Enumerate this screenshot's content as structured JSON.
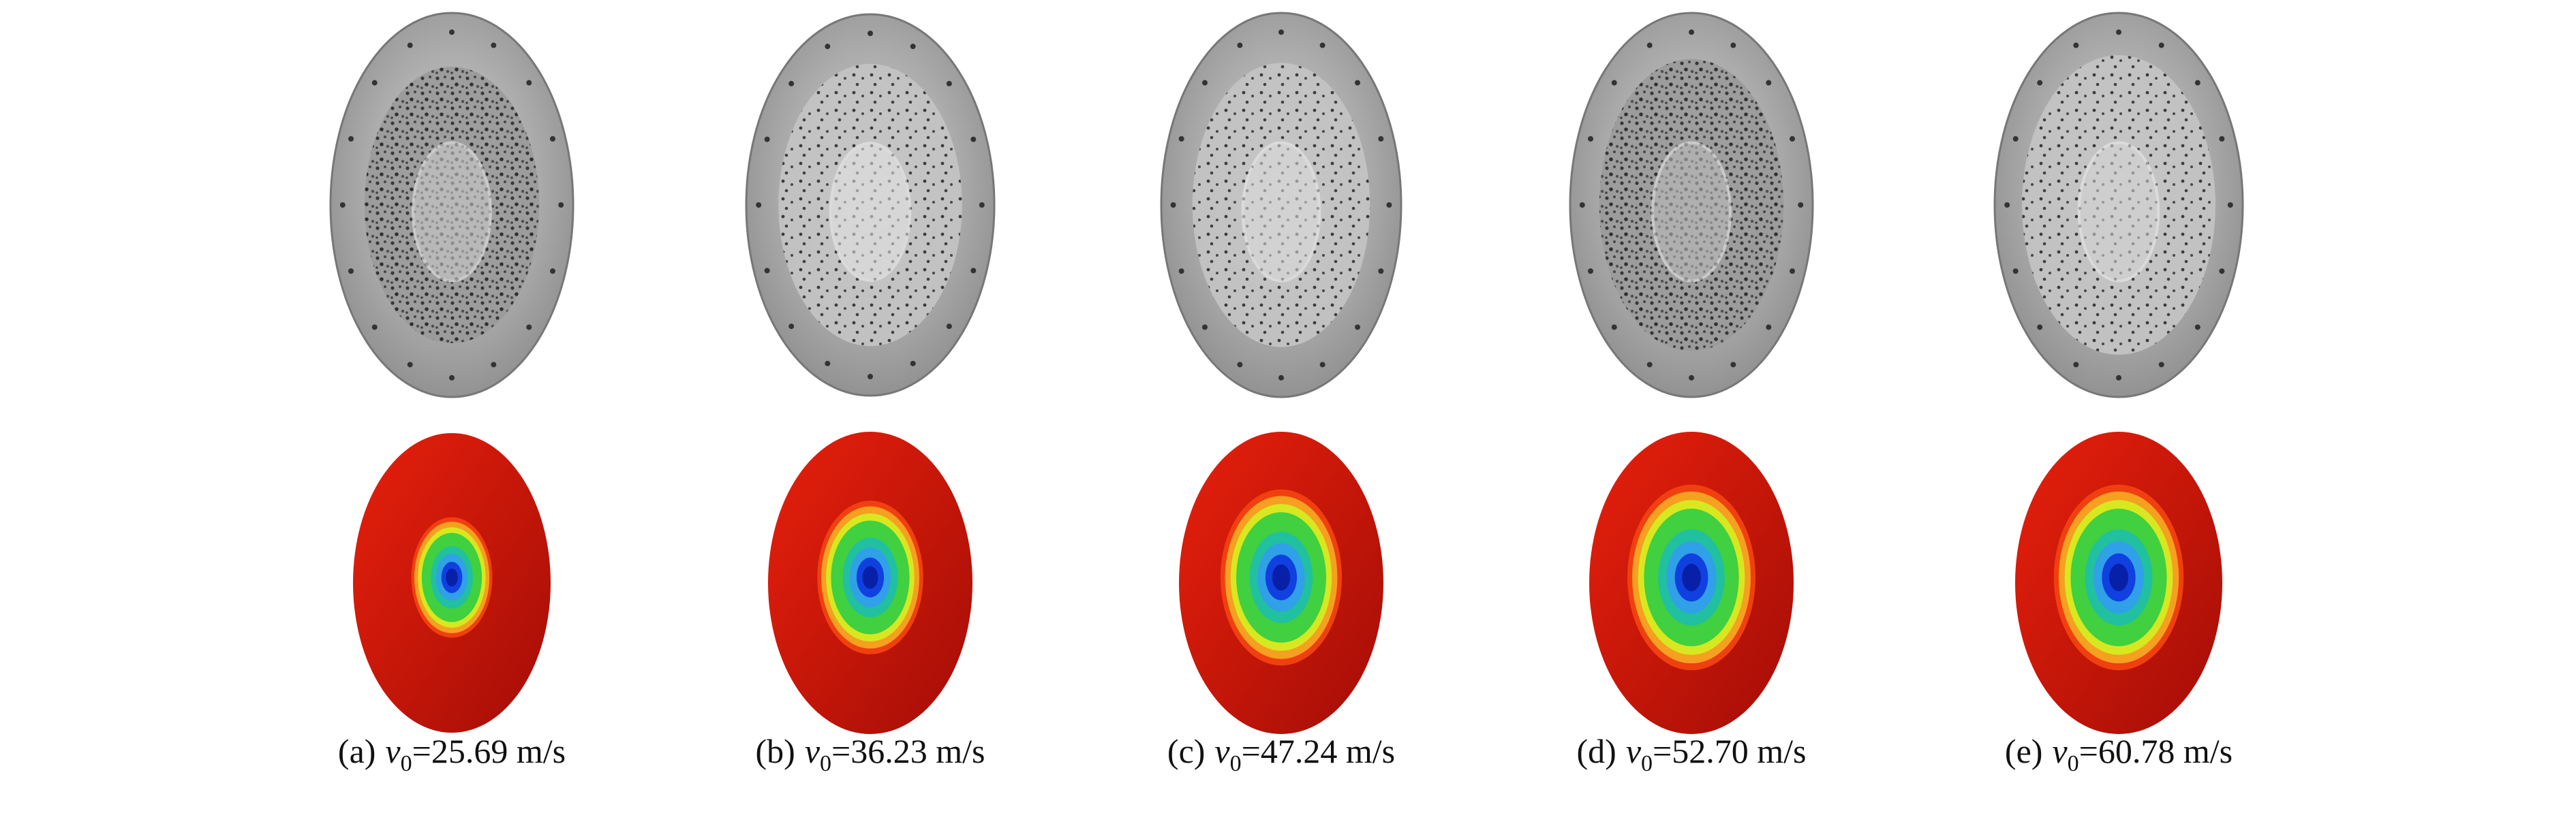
{
  "panels": [
    {
      "label": "(a)",
      "symbol": "v",
      "subscript": "0",
      "text": "=25.69 m/s"
    },
    {
      "label": "(b)",
      "symbol": "v",
      "subscript": "0",
      "text": "=36.23 m/s"
    },
    {
      "label": "(c)",
      "symbol": "v",
      "subscript": "0",
      "text": "=47.24 m/s"
    },
    {
      "label": "(d)",
      "symbol": "v",
      "subscript": "0",
      "text": "=52.70 m/s"
    },
    {
      "label": "(e)",
      "symbol": "v",
      "subscript": "0",
      "text": "=60.78 m/s"
    }
  ]
}
